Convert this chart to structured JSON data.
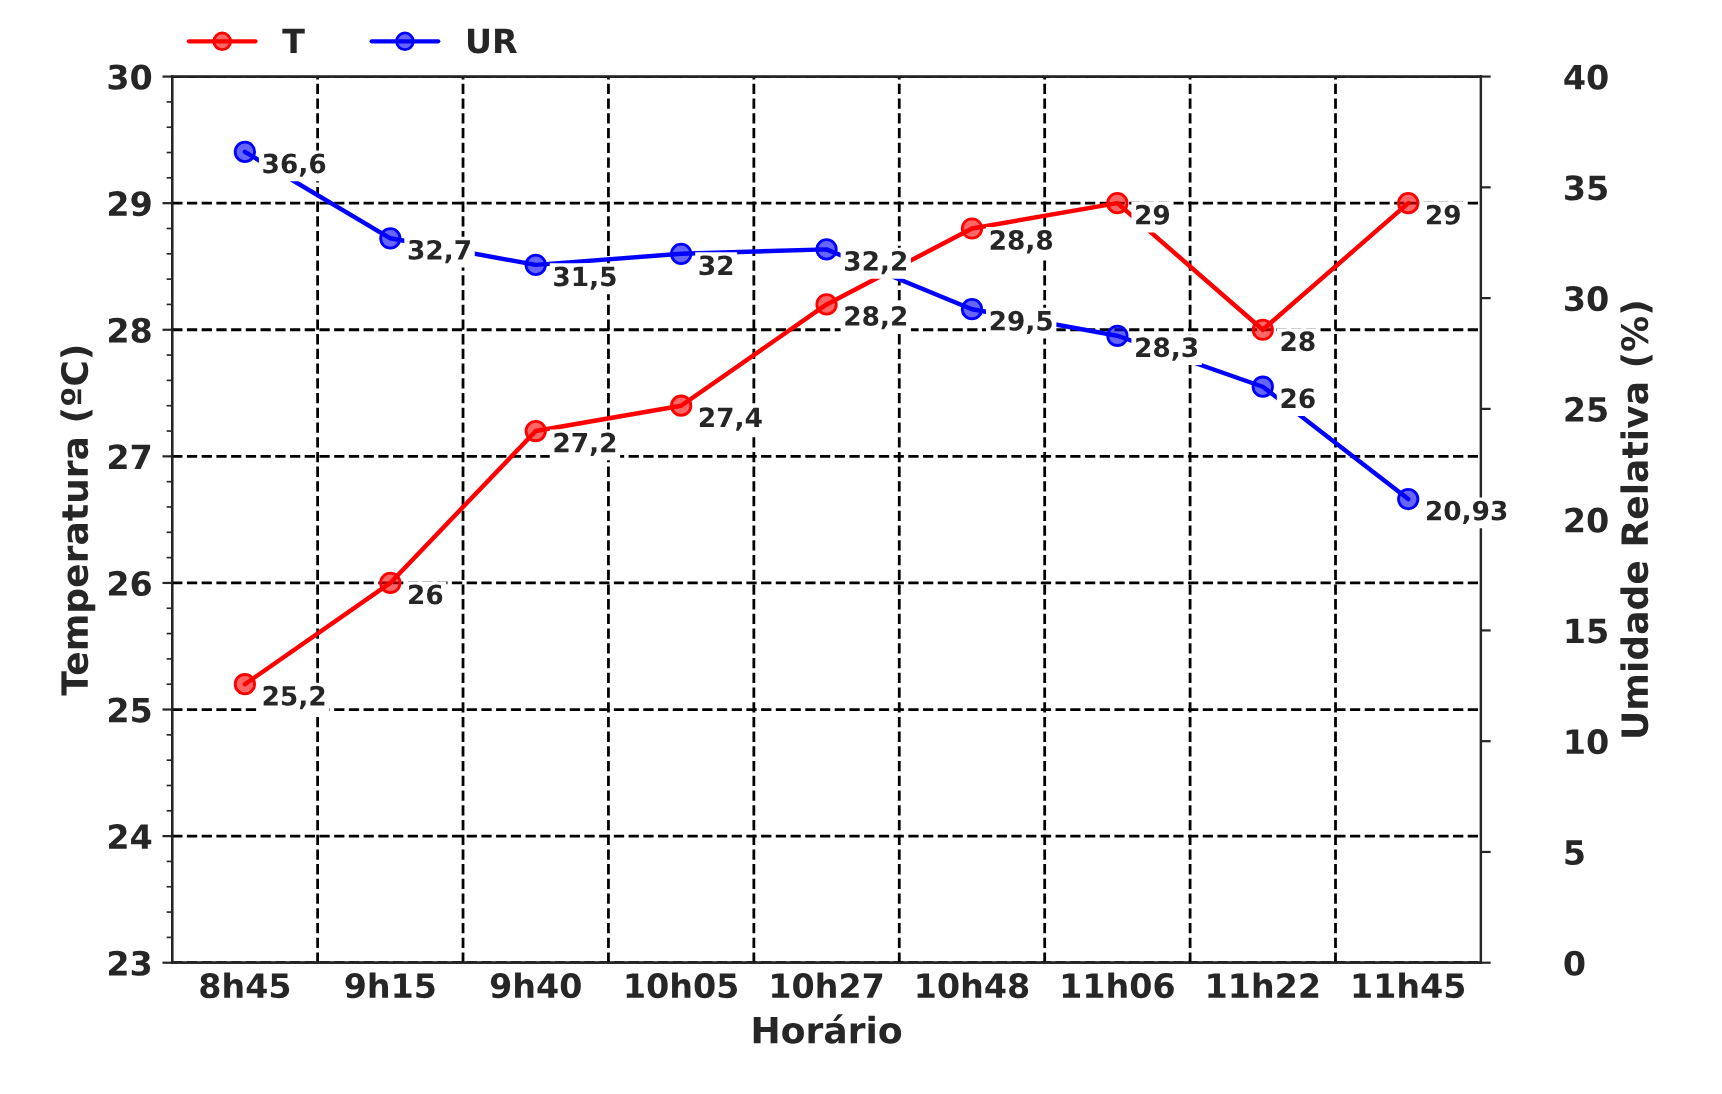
{
  "chart_data": {
    "type": "line",
    "xlabel": "Horário",
    "ylabel": "Temperatura (ºC)",
    "y2label": "Umidade Relativa (%)",
    "categories": [
      "8h45",
      "9h15",
      "9h40",
      "10h05",
      "10h27",
      "10h48",
      "11h06",
      "11h22",
      "11h45"
    ],
    "series": [
      {
        "name": "T",
        "color": "#ff0000",
        "values": [
          25.2,
          26,
          27.2,
          27.4,
          28.2,
          28.8,
          29,
          28,
          29
        ],
        "value_labels": [
          "25,2",
          "26",
          "27,2",
          "27,4",
          "28,2",
          "28,8",
          "29",
          "28",
          "29"
        ]
      },
      {
        "name": "UR",
        "color": "#0000ff",
        "axis": "y2",
        "values": [
          36.6,
          32.7,
          31.5,
          32,
          32.2,
          29.5,
          28.3,
          26,
          20.93
        ],
        "value_labels": [
          "36,6",
          "32,7",
          "31,5",
          "32",
          "32,2",
          "29,5",
          "28,3",
          "26",
          "20,93"
        ]
      }
    ],
    "ylim": [
      23,
      30
    ],
    "yticks": [
      23,
      24,
      25,
      26,
      27,
      28,
      29,
      30
    ],
    "y2lim": [
      0,
      40
    ],
    "y2ticks": [
      0,
      5,
      10,
      15,
      20,
      25,
      30,
      35,
      40
    ],
    "grid": true,
    "legend": "top left",
    "marker": "circle",
    "line_style": "solid"
  }
}
